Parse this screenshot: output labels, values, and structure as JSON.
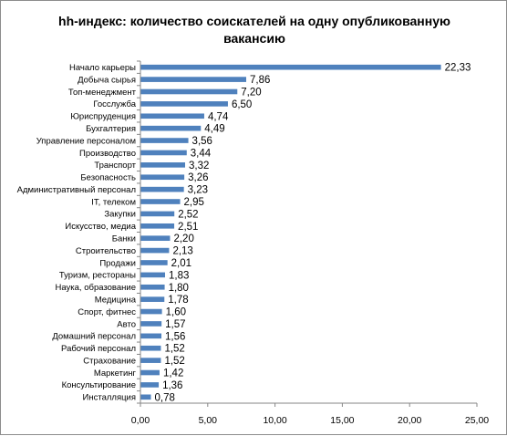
{
  "chart_data": {
    "type": "bar",
    "orientation": "horizontal",
    "title": "hh-индекс: количество соискателей на одну опубликованную вакансию",
    "title_lines": [
      "hh-индекс: количество соискателей на одну опубликованную",
      "вакансию"
    ],
    "categories": [
      "Начало карьеры",
      "Добыча сырья",
      "Топ-менеджмент",
      "Госслужба",
      "Юриспруденция",
      "Бухгалтерия",
      "Управление персоналом",
      "Производство",
      "Транспорт",
      "Безопасность",
      "Административный персонал",
      "IT, телеком",
      "Закупки",
      "Искусство, медиа",
      "Банки",
      "Строительство",
      "Продажи",
      "Туризм, рестораны",
      "Наука, образование",
      "Медицина",
      "Спорт, фитнес",
      "Авто",
      "Домашний персонал",
      "Рабочий персонал",
      "Страхование",
      "Маркетинг",
      "Консультирование",
      "Инсталляция"
    ],
    "values": [
      22.33,
      7.86,
      7.2,
      6.5,
      4.74,
      4.49,
      3.56,
      3.44,
      3.32,
      3.26,
      3.23,
      2.95,
      2.52,
      2.51,
      2.2,
      2.13,
      2.01,
      1.83,
      1.8,
      1.78,
      1.6,
      1.57,
      1.56,
      1.52,
      1.52,
      1.42,
      1.36,
      0.78
    ],
    "value_labels": [
      "22,33",
      "7,86",
      "7,20",
      "6,50",
      "4,74",
      "4,49",
      "3,56",
      "3,44",
      "3,32",
      "3,26",
      "3,23",
      "2,95",
      "2,52",
      "2,51",
      "2,20",
      "2,13",
      "2,01",
      "1,83",
      "1,80",
      "1,78",
      "1,60",
      "1,57",
      "1,56",
      "1,52",
      "1,52",
      "1,42",
      "1,36",
      "0,78"
    ],
    "xlim": [
      0,
      25
    ],
    "xticks": [
      0,
      5,
      10,
      15,
      20,
      25
    ],
    "xtick_labels": [
      "0,00",
      "5,00",
      "10,00",
      "15,00",
      "20,00",
      "25,00"
    ],
    "xlabel": "",
    "ylabel": "",
    "grid": false,
    "legend": "none",
    "bar_color": "#4f81bd",
    "axis_color": "#868686"
  }
}
